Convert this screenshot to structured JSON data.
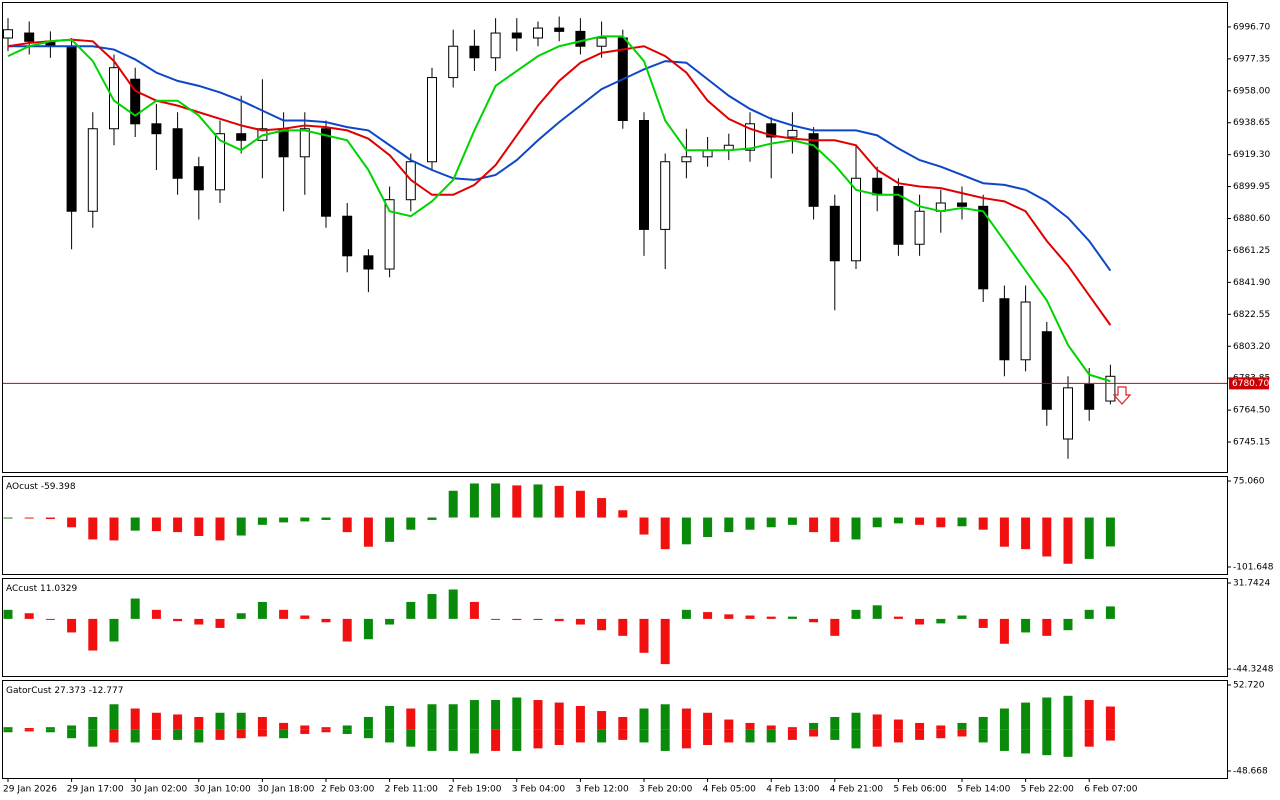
{
  "chart_data": [
    {
      "type": "candlestick",
      "categories": [
        "29 Jan 2026",
        null,
        null,
        "29 Jan 17:00",
        null,
        null,
        "30 Jan 02:00",
        null,
        null,
        "30 Jan 10:00",
        null,
        null,
        "30 Jan 18:00",
        null,
        null,
        "2 Feb 03:00",
        null,
        null,
        "2 Feb 11:00",
        null,
        null,
        "2 Feb 19:00",
        null,
        null,
        "3 Feb 04:00",
        null,
        null,
        "3 Feb 12:00",
        null,
        null,
        "3 Feb 20:00",
        null,
        null,
        "4 Feb 05:00",
        null,
        null,
        "4 Feb 13:00",
        null,
        null,
        "4 Feb 21:00",
        null,
        null,
        "5 Feb 06:00",
        null,
        null,
        "5 Feb 14:00",
        null,
        null,
        "5 Feb 22:00",
        null,
        null,
        "6 Feb 07:00",
        null
      ],
      "open": [
        6990,
        6993,
        6988,
        6985,
        6885,
        6935,
        6965,
        6938,
        6935,
        6912,
        6898,
        6932,
        6928,
        6935,
        6918,
        6935,
        6882,
        6858,
        6850,
        6892,
        6915,
        6966,
        6985,
        6978,
        6993,
        6990,
        6996,
        6994,
        6985,
        6990,
        6940,
        6874,
        6915,
        6918,
        6922,
        6922,
        6938,
        6930,
        6932,
        6888,
        6855,
        6905,
        6900,
        6865,
        6885,
        6890,
        6888,
        6832,
        6795,
        6812,
        6747,
        6780,
        6770
      ],
      "high": [
        7002,
        7000,
        6994,
        6990,
        6945,
        6980,
        6972,
        6950,
        6945,
        6918,
        6940,
        6955,
        6965,
        6945,
        6945,
        6940,
        6890,
        6862,
        6900,
        6920,
        6972,
        6995,
        6995,
        7002,
        7002,
        7000,
        7003,
        7002,
        7000,
        6995,
        6945,
        6920,
        6935,
        6930,
        6932,
        6945,
        6942,
        6945,
        6936,
        6895,
        6925,
        6912,
        6905,
        6895,
        6898,
        6900,
        6895,
        6840,
        6840,
        6818,
        6785,
        6790,
        6792
      ],
      "low": [
        6982,
        6980,
        6978,
        6862,
        6875,
        6925,
        6930,
        6910,
        6895,
        6880,
        6890,
        6920,
        6905,
        6885,
        6895,
        6875,
        6848,
        6836,
        6845,
        6885,
        6910,
        6960,
        6970,
        6970,
        6982,
        6985,
        6988,
        6980,
        6978,
        6935,
        6858,
        6850,
        6905,
        6912,
        6916,
        6915,
        6905,
        6920,
        6880,
        6825,
        6850,
        6885,
        6858,
        6858,
        6872,
        6880,
        6830,
        6785,
        6788,
        6755,
        6735,
        6758,
        6768
      ],
      "close": [
        6995,
        6988,
        6985,
        6885,
        6935,
        6972,
        6938,
        6932,
        6905,
        6898,
        6932,
        6928,
        6935,
        6918,
        6935,
        6882,
        6858,
        6850,
        6892,
        6915,
        6966,
        6985,
        6978,
        6993,
        6990,
        6996,
        6994,
        6985,
        6990,
        6940,
        6874,
        6915,
        6918,
        6922,
        6925,
        6938,
        6930,
        6934,
        6888,
        6855,
        6905,
        6895,
        6865,
        6885,
        6890,
        6888,
        6838,
        6795,
        6830,
        6765,
        6778,
        6765,
        6785
      ],
      "lines": [
        {
          "color": "#0d47c8",
          "values": [
            6985,
            6985,
            6985,
            6985,
            6985,
            6983,
            6977,
            6969,
            6964,
            6961,
            6957,
            6952,
            6946,
            6940,
            6940,
            6939,
            6936,
            6934,
            6925,
            6916,
            6910,
            6905,
            6904,
            6907,
            6916,
            6928,
            6939,
            6949,
            6959,
            6965,
            6971,
            6976,
            6975,
            6965,
            6955,
            6947,
            6941,
            6937,
            6934,
            6934,
            6934,
            6931,
            6923,
            6916,
            6912,
            6907,
            6902,
            6901,
            6898,
            6891,
            6881,
            6867,
            6849
          ]
        },
        {
          "color": "#e00000",
          "values": [
            6985,
            6987,
            6988,
            6989,
            6988,
            6976,
            6958,
            6952,
            6949,
            6945,
            6941,
            6937,
            6934,
            6935,
            6937,
            6936,
            6934,
            6929,
            6919,
            6904,
            6895,
            6895,
            6901,
            6913,
            6931,
            6949,
            6964,
            6975,
            6981,
            6983,
            6985,
            6979,
            6969,
            6952,
            6941,
            6935,
            6931,
            6929,
            6928,
            6928,
            6925,
            6910,
            6902,
            6900,
            6899,
            6896,
            6893,
            6891,
            6885,
            6867,
            6852,
            6834,
            6816
          ]
        },
        {
          "color": "#00d400",
          "values": [
            6979,
            6985,
            6988,
            6989,
            6976,
            6952,
            6943,
            6952,
            6952,
            6943,
            6928,
            6922,
            6931,
            6934,
            6934,
            6931,
            6928,
            6910,
            6885,
            6882,
            6891,
            6904,
            6934,
            6961,
            6970,
            6979,
            6985,
            6988,
            6991,
            6991,
            6976,
            6940,
            6922,
            6922,
            6922,
            6923,
            6926,
            6928,
            6925,
            6913,
            6898,
            6895,
            6895,
            6888,
            6885,
            6887,
            6885,
            6867,
            6849,
            6831,
            6804,
            6786,
            6782
          ]
        }
      ],
      "up_color": "#ffffff",
      "down_color": "#000000",
      "ylim": [
        6727.0,
        7011.2
      ],
      "yticks": [
        {
          "value": 6996.7,
          "label": "6996.70"
        },
        6977.35,
        {
          "value": 6958,
          "label": "6958.00"
        },
        6938.65,
        {
          "value": 6919.3,
          "label": "6919.30"
        },
        6899.95,
        {
          "value": 6880.6,
          "label": "6880.60"
        },
        6861.25,
        {
          "value": 6841.9,
          "label": "6841.90"
        },
        6822.55,
        {
          "value": 6803.2,
          "label": "6803.20"
        },
        6783.85,
        {
          "value": 6764.5,
          "label": "6764.50"
        },
        6745.15
      ],
      "price_line": {
        "value": 6780.7,
        "label": "6780.70"
      },
      "price_line_color": "#cc0000"
    },
    {
      "type": "histogram",
      "name": "AOcust",
      "up_color": "#0a8a0a",
      "down_color": "#f01010",
      "values": [
        -1,
        -2,
        -3,
        -20,
        -45,
        -47,
        -27,
        -28,
        -30,
        -38,
        -47,
        -37,
        -15,
        -10,
        -8,
        -5,
        -30,
        -60,
        -50,
        -25,
        -5,
        55,
        70,
        70,
        66,
        68,
        65,
        55,
        40,
        15,
        -35,
        -65,
        -55,
        -40,
        -30,
        -25,
        -20,
        -15,
        -30,
        -50,
        -45,
        -20,
        -12,
        -15,
        -20,
        -18,
        -25,
        -60,
        -65,
        -80,
        -95,
        -85,
        -59.398
      ],
      "ylim": [
        -101.648,
        75.06
      ],
      "yticks": [
        {
          "value": 75.06,
          "label": "75.060"
        },
        -101.648
      ]
    },
    {
      "type": "histogram",
      "name": "ACcust",
      "up_color": "#0a8a0a",
      "down_color": "#f01010",
      "values": [
        8,
        5,
        0,
        -12,
        -28,
        -20,
        18,
        8,
        -2,
        -5,
        -8,
        5,
        15,
        8,
        3,
        -3,
        -20,
        -18,
        -5,
        15,
        22,
        26,
        15,
        0,
        -1,
        -1,
        -2,
        -5,
        -10,
        -15,
        -30,
        -40,
        8,
        6,
        4,
        3,
        2,
        2,
        -3,
        -15,
        8,
        12,
        2,
        -5,
        -4,
        3,
        -8,
        -22,
        -12,
        -15,
        -10,
        8,
        11.0329
      ],
      "ylim": [
        -44.3248,
        31.7424
      ],
      "yticks": [
        31.7424,
        -44.3248
      ]
    },
    {
      "type": "gator",
      "name": "GatorCust",
      "up_color": "#0a8a0a",
      "down_color": "#f01010",
      "upper": [
        3,
        2,
        3,
        5,
        15,
        30,
        25,
        20,
        18,
        15,
        20,
        20,
        15,
        8,
        5,
        3,
        5,
        15,
        28,
        25,
        30,
        30,
        35,
        35,
        38,
        35,
        32,
        28,
        22,
        15,
        25,
        30,
        25,
        20,
        12,
        8,
        5,
        3,
        8,
        15,
        20,
        18,
        12,
        8,
        5,
        8,
        15,
        25,
        32,
        38,
        40,
        35,
        27.373
      ],
      "lower": [
        -3,
        -2,
        -3,
        -10,
        -20,
        -15,
        -15,
        -12,
        -12,
        -15,
        -12,
        -10,
        -8,
        -10,
        -5,
        -3,
        -5,
        -10,
        -15,
        -20,
        -25,
        -25,
        -28,
        -25,
        -25,
        -22,
        -18,
        -15,
        -15,
        -12,
        -15,
        -25,
        -22,
        -18,
        -15,
        -15,
        -15,
        -12,
        -8,
        -12,
        -22,
        -20,
        -15,
        -12,
        -10,
        -8,
        -15,
        -25,
        -28,
        -30,
        -32,
        -20,
        -12.777
      ],
      "ylim": [
        -48.668,
        52.72
      ],
      "yticks": [
        {
          "value": 52.72,
          "label": "52.720"
        },
        -48.668
      ]
    }
  ]
}
